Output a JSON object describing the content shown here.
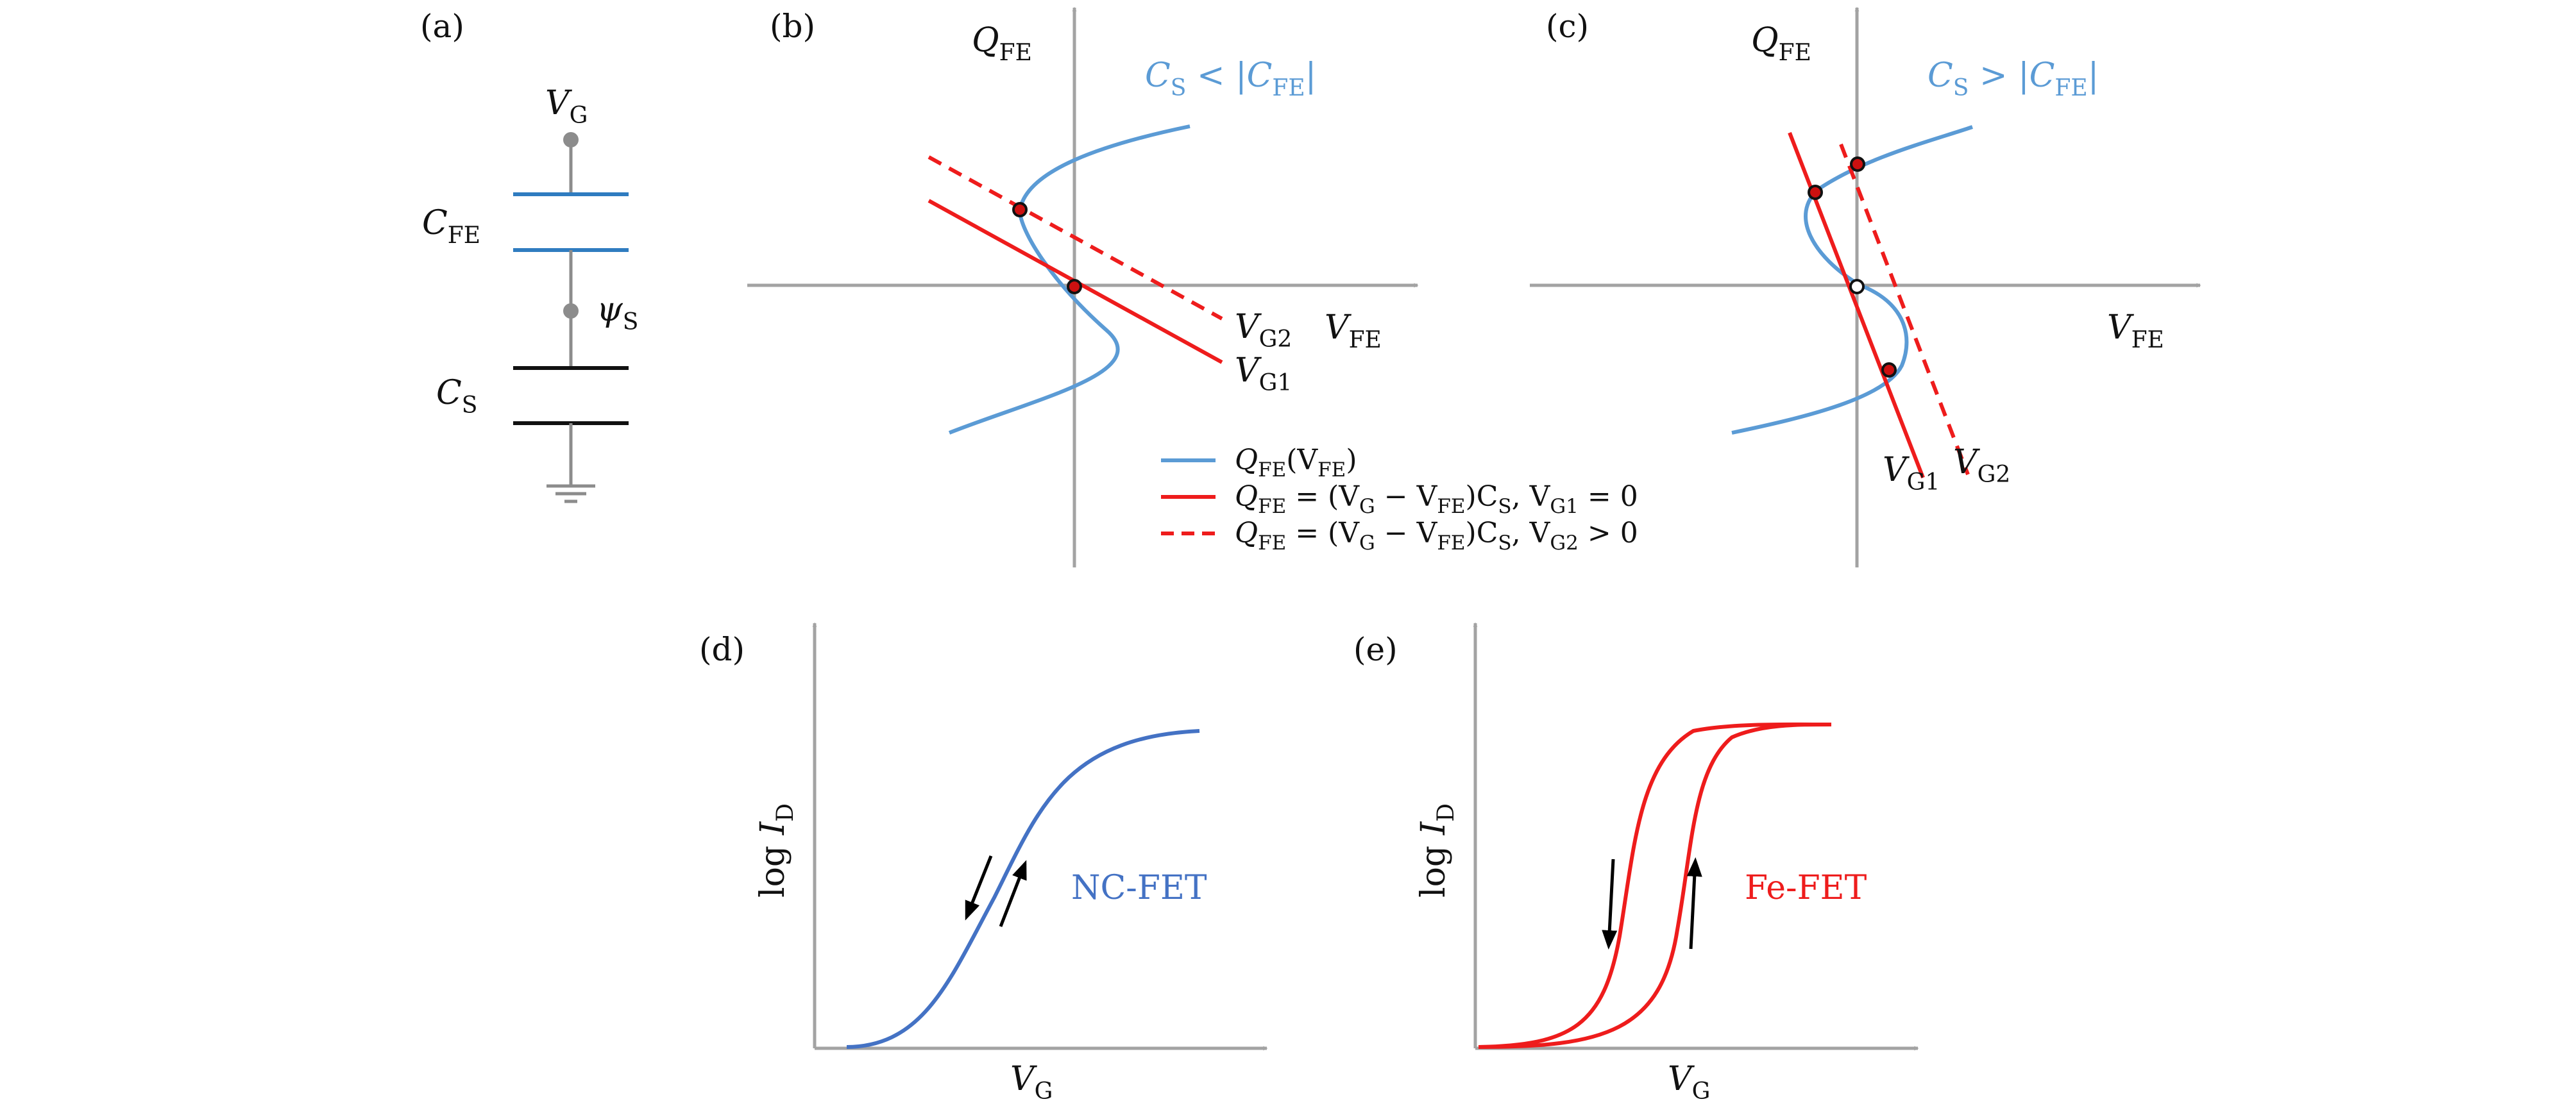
{
  "colors": {
    "axis": "#a3a3a3",
    "circuit_wire": "#8c8c8c",
    "fe_plate": "#2f7cc0",
    "s_plate": "#111111",
    "qfe_curve": "#5b9bd5",
    "load_line": "#ee1c1c",
    "ncfet_curve": "#4472c4",
    "fefet_curve": "#ee1c1c",
    "marker_fill": "#cc1010"
  },
  "panel_a": {
    "label": "(a)",
    "vg": {
      "main": "V",
      "sub": "G"
    },
    "cfe": {
      "main": "C",
      "sub": "FE"
    },
    "psi": {
      "main": "ψ",
      "sub": "S"
    },
    "cs": {
      "main": "C",
      "sub": "S"
    },
    "icons": [
      "capacitor-fe-icon",
      "capacitor-s-icon",
      "ground-icon"
    ]
  },
  "panel_b": {
    "label": "(b)",
    "y_axis": {
      "main": "Q",
      "sub": "FE"
    },
    "x_axis": {
      "main": "V",
      "sub": "FE"
    },
    "condition": {
      "a": "C",
      "a_sub": "S",
      "op": " < |",
      "b": "C",
      "b_sub": "FE",
      "end": "|"
    },
    "line_g2": {
      "main": "V",
      "sub": "G2"
    },
    "line_g1": {
      "main": "V",
      "sub": "G1"
    }
  },
  "panel_c": {
    "label": "(c)",
    "y_axis": {
      "main": "Q",
      "sub": "FE"
    },
    "x_axis": {
      "main": "V",
      "sub": "FE"
    },
    "condition": {
      "a": "C",
      "a_sub": "S",
      "op": " > |",
      "b": "C",
      "b_sub": "FE",
      "end": "|"
    },
    "line_g1": {
      "main": "V",
      "sub": "G1"
    },
    "line_g2": {
      "main": "V",
      "sub": "G2"
    }
  },
  "legend": [
    {
      "style": "solid-blue",
      "text": [
        [
          "Q",
          ""
        ],
        [
          "",
          "FE"
        ],
        [
          "(V",
          ""
        ],
        [
          "",
          "FE"
        ],
        [
          ")",
          ""
        ]
      ]
    },
    {
      "style": "solid-red",
      "text": [
        [
          "Q",
          ""
        ],
        [
          "",
          "FE"
        ],
        [
          " = (V",
          ""
        ],
        [
          "",
          "G"
        ],
        [
          " − V",
          ""
        ],
        [
          "",
          "FE"
        ],
        [
          ")C",
          ""
        ],
        [
          "",
          "S"
        ],
        [
          ", V",
          ""
        ],
        [
          "",
          "G1"
        ],
        [
          " = 0",
          ""
        ]
      ]
    },
    {
      "style": "dashed-red",
      "text": [
        [
          "Q",
          ""
        ],
        [
          "",
          "FE"
        ],
        [
          " = (V",
          ""
        ],
        [
          "",
          "G"
        ],
        [
          " − V",
          ""
        ],
        [
          "",
          "FE"
        ],
        [
          ")C",
          ""
        ],
        [
          "",
          "S"
        ],
        [
          ", V",
          ""
        ],
        [
          "",
          "G2"
        ],
        [
          " > 0",
          ""
        ]
      ]
    }
  ],
  "panel_d": {
    "label": "(d)",
    "y_axis": {
      "pre": "log ",
      "main": "I",
      "sub": "D"
    },
    "x_axis": {
      "main": "V",
      "sub": "G"
    },
    "curve_label": "NC-FET"
  },
  "panel_e": {
    "label": "(e)",
    "y_axis": {
      "pre": "log ",
      "main": "I",
      "sub": "D"
    },
    "x_axis": {
      "main": "V",
      "sub": "G"
    },
    "curve_label": "Fe-FET"
  }
}
